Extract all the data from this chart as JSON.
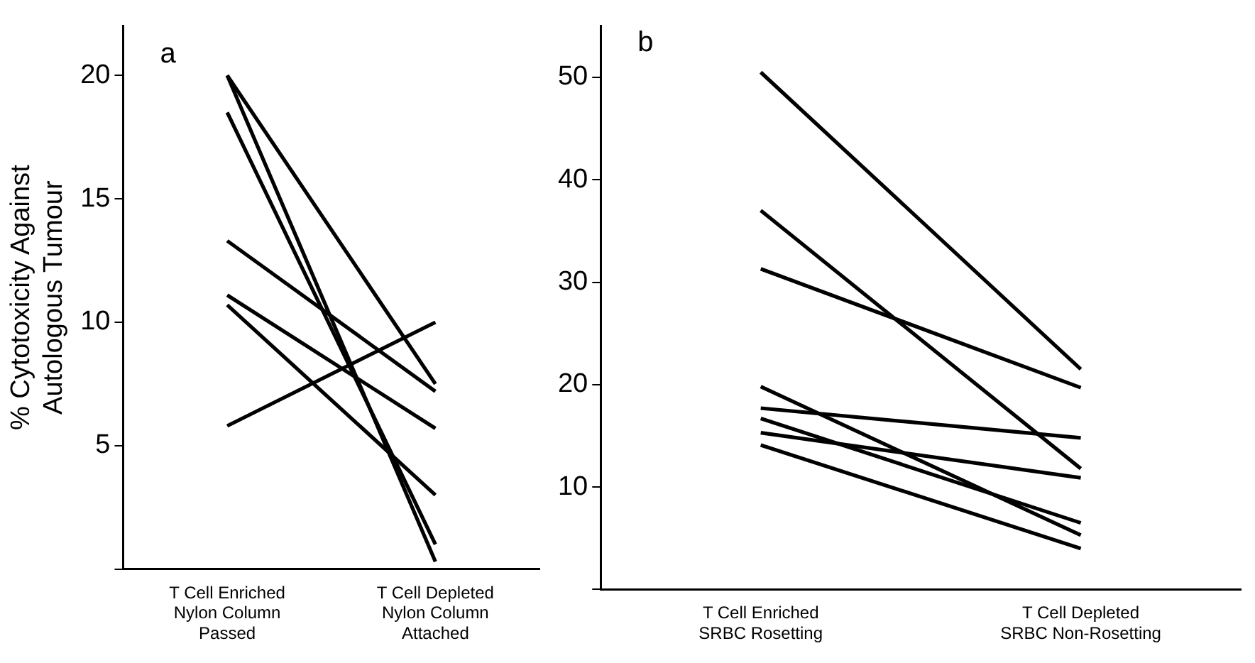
{
  "chart_data": [
    {
      "type": "line",
      "title": "a",
      "ylabel": "% Cytotoxicity Against\nAutologous Tumour",
      "categories": [
        "T Cell Enriched\nNylon Column\nPassed",
        "T Cell Depleted\nNylon Column\nAttached"
      ],
      "ylim": [
        0,
        22
      ],
      "yticks": [
        {
          "value": 0,
          "label": null
        },
        5,
        10,
        15,
        20
      ],
      "grid": false,
      "legend": false,
      "marker": "none",
      "line_style": "solid",
      "series": [
        {
          "color": "#000000",
          "values": [
            20,
            7.5
          ]
        },
        {
          "color": "#000000",
          "values": [
            20,
            0.3
          ]
        },
        {
          "color": "#000000",
          "values": [
            18.5,
            1.0
          ]
        },
        {
          "color": "#000000",
          "values": [
            13.3,
            7.2
          ]
        },
        {
          "color": "#000000",
          "values": [
            11.1,
            5.7
          ]
        },
        {
          "color": "#000000",
          "values": [
            10.7,
            3.0
          ]
        },
        {
          "color": "#000000",
          "values": [
            5.8,
            10.0
          ]
        }
      ]
    },
    {
      "type": "line",
      "title": "b",
      "categories": [
        "T Cell Enriched\nSRBC Rosetting",
        "T Cell Depleted\nSRBC Non-Rosetting"
      ],
      "ylim": [
        0,
        55
      ],
      "yticks": [
        {
          "value": 0,
          "label": null
        },
        10,
        20,
        30,
        40,
        50
      ],
      "grid": false,
      "legend": false,
      "marker": "none",
      "line_style": "solid",
      "series": [
        {
          "color": "#000000",
          "values": [
            50.5,
            21.5
          ]
        },
        {
          "color": "#000000",
          "values": [
            37,
            11.8
          ]
        },
        {
          "color": "#000000",
          "values": [
            31.3,
            19.7
          ]
        },
        {
          "color": "#000000",
          "values": [
            19.8,
            5.3
          ]
        },
        {
          "color": "#000000",
          "values": [
            17.7,
            14.8
          ]
        },
        {
          "color": "#000000",
          "values": [
            16.7,
            6.5
          ]
        },
        {
          "color": "#000000",
          "values": [
            15.3,
            10.9
          ]
        },
        {
          "color": "#000000",
          "values": [
            14.1,
            4.0
          ]
        }
      ]
    }
  ]
}
